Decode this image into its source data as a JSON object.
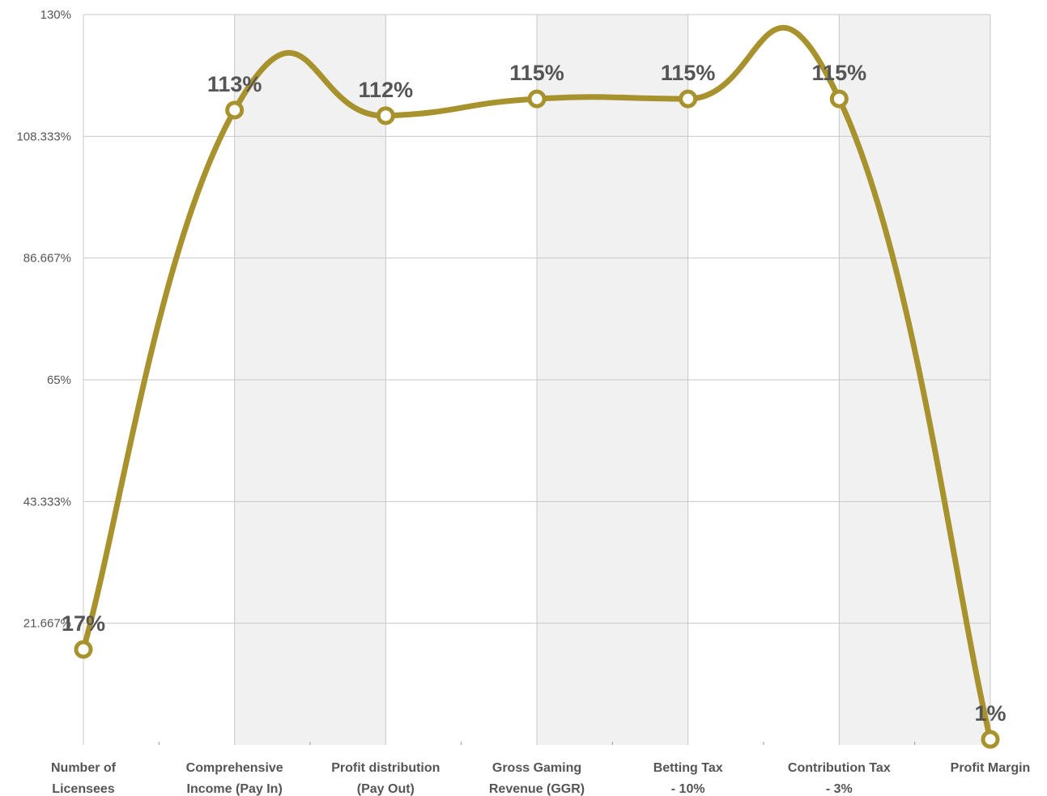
{
  "chart_data": {
    "type": "line",
    "title": "",
    "xlabel": "",
    "ylabel": "",
    "categories": [
      [
        "Number of",
        "Licensees"
      ],
      [
        "Comprehensive",
        "Income (Pay In)"
      ],
      [
        "Profit distribution",
        "(Pay Out)"
      ],
      [
        "Gross Gaming",
        "Revenue (GGR)"
      ],
      [
        "Betting Tax",
        "- 10%"
      ],
      [
        "Contribution Tax",
        "- 3%"
      ],
      [
        "Profit Margin"
      ]
    ],
    "series": [
      {
        "values": [
          17,
          113,
          112,
          115,
          115,
          115,
          1
        ],
        "labels": [
          "17%",
          "113%",
          "112%",
          "115%",
          "115%",
          "115%",
          "1%"
        ]
      }
    ],
    "ylim": [
      0,
      130
    ],
    "yticks": [
      "130%",
      "108.333%",
      "86.667%",
      "65%",
      "43.333%",
      "21.667%"
    ],
    "ytick_values": [
      130,
      108.333,
      86.667,
      65,
      43.333,
      21.667
    ],
    "grid": true,
    "line_color": "#a8922e",
    "band_color": "#f0f1f0",
    "grid_color": "#c8c8c8",
    "text_color": "#555555"
  }
}
